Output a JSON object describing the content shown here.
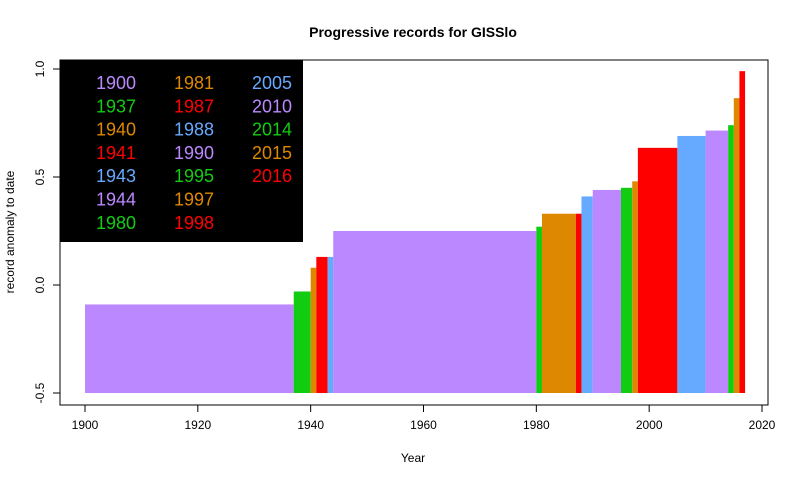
{
  "chart_data": {
    "type": "bar",
    "title": "Progressive records for GISSlo",
    "xlabel": "Year",
    "ylabel": "record anomaly to date",
    "xlim": [
      1896,
      2021
    ],
    "ylim": [
      -0.5,
      1.05
    ],
    "baseline": -0.5,
    "x_ticks": [
      "1900",
      "1920",
      "1940",
      "1960",
      "1980",
      "2000",
      "2020"
    ],
    "y_ticks": [
      "-0.5",
      "0.0",
      "0.5",
      "1.0"
    ],
    "legend_position": "top-left",
    "legend_background": "#000000",
    "records": [
      {
        "year": "1900",
        "start": 1900,
        "end": 1937,
        "value": -0.09,
        "color": "#bb88ff"
      },
      {
        "year": "1937",
        "start": 1937,
        "end": 1940,
        "value": -0.03,
        "color": "#11cc11"
      },
      {
        "year": "1940",
        "start": 1940,
        "end": 1941,
        "value": 0.08,
        "color": "#dd8800"
      },
      {
        "year": "1941",
        "start": 1941,
        "end": 1943,
        "value": 0.13,
        "color": "#ff0000"
      },
      {
        "year": "1943",
        "start": 1943,
        "end": 1944,
        "value": 0.13,
        "color": "#66aaff"
      },
      {
        "year": "1944",
        "start": 1944,
        "end": 1980,
        "value": 0.25,
        "color": "#bb88ff"
      },
      {
        "year": "1980",
        "start": 1980,
        "end": 1981,
        "value": 0.27,
        "color": "#11cc11"
      },
      {
        "year": "1981",
        "start": 1981,
        "end": 1987,
        "value": 0.33,
        "color": "#dd8800"
      },
      {
        "year": "1987",
        "start": 1987,
        "end": 1988,
        "value": 0.33,
        "color": "#ff0000"
      },
      {
        "year": "1988",
        "start": 1988,
        "end": 1990,
        "value": 0.41,
        "color": "#66aaff"
      },
      {
        "year": "1990",
        "start": 1990,
        "end": 1995,
        "value": 0.44,
        "color": "#bb88ff"
      },
      {
        "year": "1995",
        "start": 1995,
        "end": 1997,
        "value": 0.45,
        "color": "#11cc11"
      },
      {
        "year": "1997",
        "start": 1997,
        "end": 1998,
        "value": 0.48,
        "color": "#dd8800"
      },
      {
        "year": "1998",
        "start": 1998,
        "end": 2005,
        "value": 0.635,
        "color": "#ff0000"
      },
      {
        "year": "2005",
        "start": 2005,
        "end": 2010,
        "value": 0.69,
        "color": "#66aaff"
      },
      {
        "year": "2010",
        "start": 2010,
        "end": 2014,
        "value": 0.715,
        "color": "#bb88ff"
      },
      {
        "year": "2014",
        "start": 2014,
        "end": 2015,
        "value": 0.74,
        "color": "#11cc11"
      },
      {
        "year": "2015",
        "start": 2015,
        "end": 2016,
        "value": 0.865,
        "color": "#dd8800"
      },
      {
        "year": "2016",
        "start": 2016,
        "end": 2017,
        "value": 0.99,
        "color": "#ff0000"
      }
    ]
  }
}
